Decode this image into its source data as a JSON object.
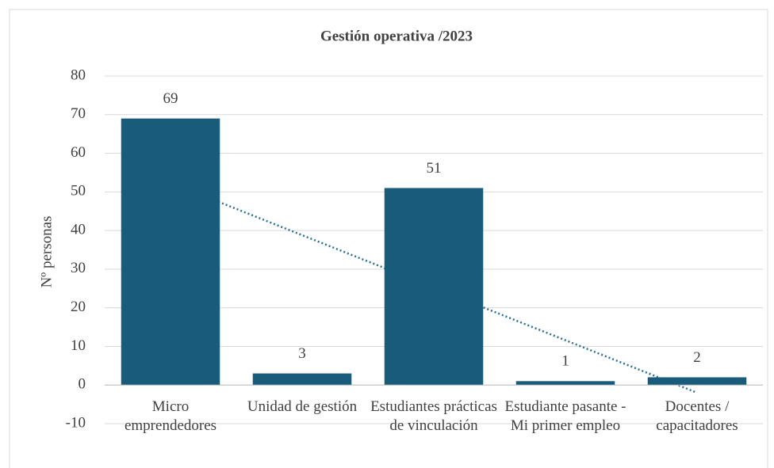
{
  "chart_data": {
    "type": "bar",
    "title": "Gestión operativa /2023",
    "y_label": "Nº personas",
    "categories": [
      "Micro emprendedores",
      "Unidad de gestión",
      "Estudiantes prácticas de vinculación",
      "Estudiante pasante - Mi primer empleo",
      "Docentes / capacitadores"
    ],
    "values": [
      69,
      3,
      51,
      1,
      2
    ],
    "color": "#195b7a",
    "ylim": [
      -10,
      80
    ],
    "yticks": [
      -10,
      0,
      10,
      20,
      30,
      40,
      50,
      60,
      70,
      80
    ],
    "grid": true,
    "trendline": {
      "type": "linear",
      "color": "#2a6f93",
      "values": [
        52.4,
        -2
      ]
    }
  }
}
